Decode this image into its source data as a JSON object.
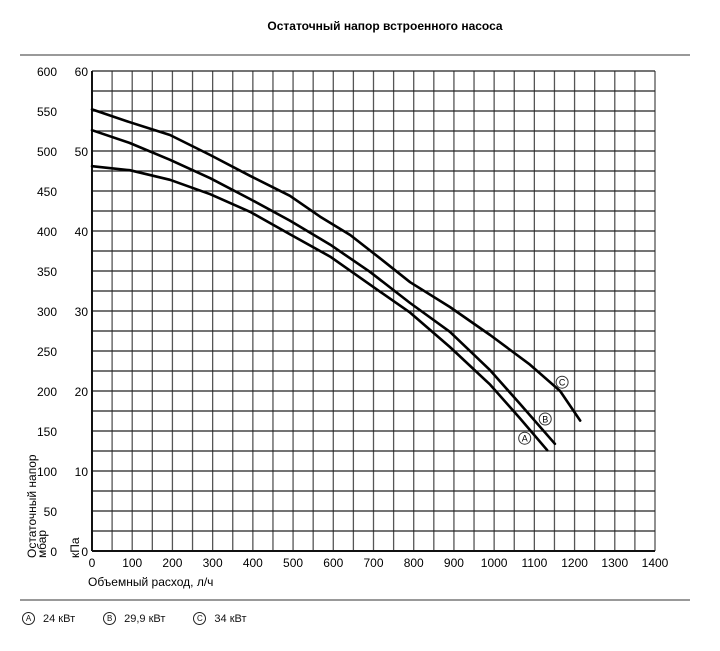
{
  "chart_data": {
    "type": "line",
    "title": "Остаточный напор встроенного насоса",
    "xlabel": "Объемный расход, л/ч",
    "ylabel": "Остаточный напор мбар",
    "ylabel2": "кПа",
    "xlim": [
      0,
      1400
    ],
    "ylim": [
      0,
      600
    ],
    "y2lim": [
      0,
      60
    ],
    "grid": true,
    "x_ticks": [
      "0",
      "100",
      "200",
      "300",
      "400",
      "500",
      "600",
      "700",
      "800",
      "900",
      "1000",
      "1100",
      "1200",
      "1300",
      "1400"
    ],
    "y_ticks": [
      "0",
      "50",
      "100",
      "150",
      "200",
      "250",
      "300",
      "350",
      "400",
      "450",
      "500",
      "550",
      "600"
    ],
    "y2_ticks": [
      "0",
      "10",
      "20",
      "30",
      "40",
      "50",
      "60"
    ],
    "series": [
      {
        "name": "A",
        "label": "24 кВт",
        "x": [
          0,
          94,
          194,
          294,
          393,
          492,
          592,
          691,
          791,
          890,
          990,
          1064,
          1132
        ],
        "y": [
          481,
          476,
          464,
          446,
          424,
          396,
          368,
          333,
          298,
          255,
          208,
          166,
          126
        ]
      },
      {
        "name": "B",
        "label": "29,9 кВт",
        "x": [
          0,
          94,
          194,
          294,
          393,
          492,
          592,
          691,
          791,
          890,
          990,
          1064,
          1151
        ],
        "y": [
          526,
          510,
          489,
          466,
          440,
          413,
          383,
          349,
          310,
          274,
          226,
          184,
          134
        ]
      },
      {
        "name": "C",
        "label": "34 кВт",
        "x": [
          0,
          94,
          194,
          294,
          393,
          492,
          567,
          642,
          716,
          791,
          890,
          990,
          1089,
          1164,
          1214
        ],
        "y": [
          552,
          536,
          520,
          495,
          469,
          444,
          418,
          395,
          366,
          336,
          305,
          270,
          233,
          200,
          163
        ]
      }
    ],
    "curve_label_positions": [
      {
        "name": "A",
        "x": 1076,
        "y": 141
      },
      {
        "name": "B",
        "x": 1127,
        "y": 165
      },
      {
        "name": "C",
        "x": 1169,
        "y": 211
      }
    ]
  },
  "legend": [
    {
      "mark": "A",
      "label": "24 кВт"
    },
    {
      "mark": "B",
      "label": "29,9 кВт"
    },
    {
      "mark": "C",
      "label": "34 кВт"
    }
  ]
}
